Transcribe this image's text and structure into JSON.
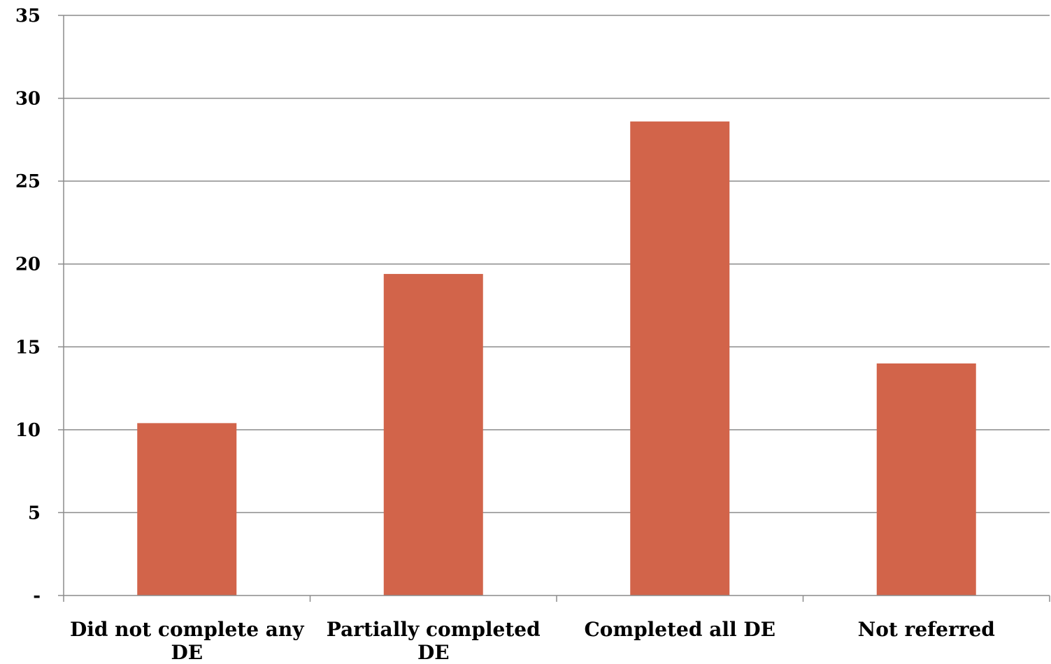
{
  "chart_data": {
    "type": "bar",
    "categories": [
      [
        "Did not complete any",
        "DE"
      ],
      [
        "Partially completed",
        "DE"
      ],
      [
        "Completed all DE"
      ],
      [
        "Not referred"
      ]
    ],
    "values": [
      10.4,
      19.4,
      28.6,
      14.0
    ],
    "ylim": [
      0,
      35
    ],
    "yticks": [
      0,
      5,
      10,
      15,
      20,
      25,
      30,
      35
    ],
    "ytick_labels": [
      "-",
      "5",
      "10",
      "15",
      "20",
      "25",
      "30",
      "35"
    ],
    "title": "",
    "xlabel": "",
    "ylabel": "",
    "grid": true,
    "legend": "none",
    "bar_color": "#D2644A",
    "grid_color": "#8C8C8C",
    "axis_color": "#8C8C8C"
  }
}
